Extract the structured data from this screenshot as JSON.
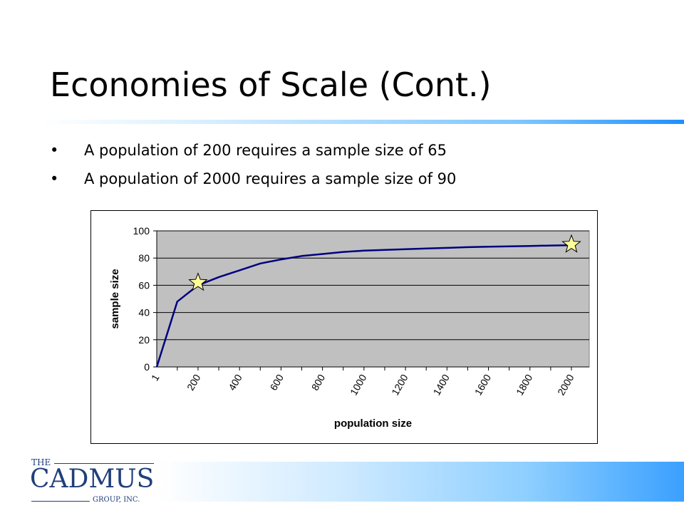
{
  "slide": {
    "title": "Economies of Scale (Cont.)",
    "bullets": [
      "A population of 200 requires a sample size of 65",
      "A population of 2000 requires a sample size of 90"
    ]
  },
  "logo": {
    "the": "THE",
    "name": "CADMUS",
    "group": "GROUP, INC.",
    "color": "#1f3f7a"
  },
  "colors": {
    "plot_background": "#c0c0c0",
    "line": "#000080",
    "star_fill": "#ffff99"
  },
  "chart_data": {
    "type": "line",
    "xlabel": "population size",
    "ylabel": "sample size",
    "ylim": [
      0,
      100
    ],
    "yticks": [
      0,
      20,
      40,
      60,
      80,
      100
    ],
    "grid": true,
    "legend": "none",
    "categories": [
      "1",
      "200",
      "400",
      "600",
      "800",
      "1000",
      "1200",
      "1400",
      "1600",
      "1800",
      "2000"
    ],
    "series": [
      {
        "x": [
          1,
          100,
          200,
          300,
          400,
          500,
          600,
          700,
          800,
          900,
          1000,
          1100,
          1200,
          1300,
          1400,
          1500,
          1600,
          1700,
          1800,
          1900,
          2000
        ],
        "values": [
          0,
          48,
          60,
          66,
          71,
          76,
          79,
          81.5,
          83,
          84.5,
          85.5,
          86,
          86.5,
          87,
          87.5,
          88,
          88.3,
          88.6,
          88.9,
          89.2,
          89.5
        ]
      }
    ],
    "markers": [
      {
        "shape": "star",
        "x": 200,
        "y": 62
      },
      {
        "shape": "star",
        "x": 2000,
        "y": 90
      }
    ]
  }
}
